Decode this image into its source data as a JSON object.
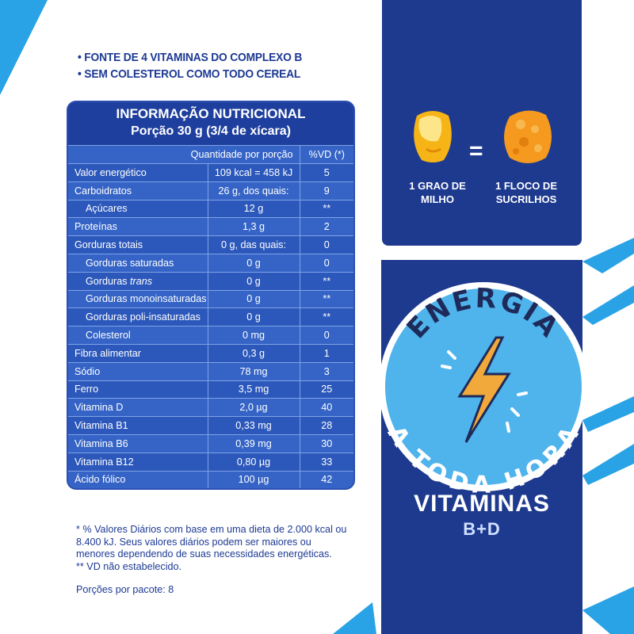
{
  "bullets": [
    "• FONTE DE 4 VITAMINAS DO COMPLEXO B",
    "• SEM COLESTEROL COMO TODO CEREAL"
  ],
  "nutrition": {
    "title": "INFORMAÇÃO NUTRICIONAL",
    "serving": "Porção 30 g (3/4 de xícara)",
    "header": {
      "quantity": "Quantidade por porção",
      "vd": "%VD (*)"
    },
    "rows": [
      {
        "name": "Valor energético",
        "qty": "109 kcal = 458 kJ",
        "vd": "5",
        "indent": false
      },
      {
        "name": "Carboidratos",
        "qty": "26 g, dos quais:",
        "vd": "9",
        "indent": false
      },
      {
        "name": "Açúcares",
        "qty": "12 g",
        "vd": "**",
        "indent": true
      },
      {
        "name": "Proteínas",
        "qty": "1,3 g",
        "vd": "2",
        "indent": false
      },
      {
        "name": "Gorduras totais",
        "qty": "0 g, das quais:",
        "vd": "0",
        "indent": false
      },
      {
        "name": "Gorduras saturadas",
        "qty": "0 g",
        "vd": "0",
        "indent": true
      },
      {
        "name": "Gorduras trans",
        "qty": "0 g",
        "vd": "**",
        "indent": true
      },
      {
        "name": "Gorduras monoinsaturadas",
        "qty": "0 g",
        "vd": "**",
        "indent": true
      },
      {
        "name": "Gorduras poli-insaturadas",
        "qty": "0 g",
        "vd": "**",
        "indent": true
      },
      {
        "name": "Colesterol",
        "qty": "0 mg",
        "vd": "0",
        "indent": true
      },
      {
        "name": "Fibra alimentar",
        "qty": "0,3 g",
        "vd": "1",
        "indent": false
      },
      {
        "name": "Sódio",
        "qty": "78 mg",
        "vd": "3",
        "indent": false
      },
      {
        "name": "Ferro",
        "qty": "3,5 mg",
        "vd": "25",
        "indent": false
      },
      {
        "name": "Vitamina D",
        "qty": "2,0 µg",
        "vd": "40",
        "indent": false
      },
      {
        "name": "Vitamina B1",
        "qty": "0,33 mg",
        "vd": "28",
        "indent": false
      },
      {
        "name": "Vitamina B6",
        "qty": "0,39 mg",
        "vd": "30",
        "indent": false
      },
      {
        "name": "Vitamina B12",
        "qty": "0,80 µg",
        "vd": "33",
        "indent": false
      },
      {
        "name": "Ácido fólico",
        "qty": "100 µg",
        "vd": "42",
        "indent": false
      }
    ]
  },
  "footnotes": {
    "line1": "* % Valores Diários com base em uma dieta de 2.000 kcal ou 8.400 kJ. Seus valores diários podem ser maiores ou menores dependendo de suas necessidades energéticas.",
    "line2": "** VD não estabelecido.",
    "servings": "Porções por pacote: 8"
  },
  "corn": {
    "equals": "=",
    "caption_left": [
      "1 GRAO DE",
      "MILHO"
    ],
    "caption_right": [
      "1 FLOCO DE",
      "SUCRILHOS"
    ]
  },
  "badge": {
    "top_text": "ENERGIA",
    "bottom_text": "A TODA HORA"
  },
  "vitamins": {
    "title": "VITAMINAS",
    "subtitle": "B+D"
  },
  "colors": {
    "navy": "#1e3a8f",
    "table_blue": "#2f5bc0",
    "sky": "#29a3e6",
    "badge_blue": "#4fb3ec",
    "bolt": "#f2a93b"
  }
}
